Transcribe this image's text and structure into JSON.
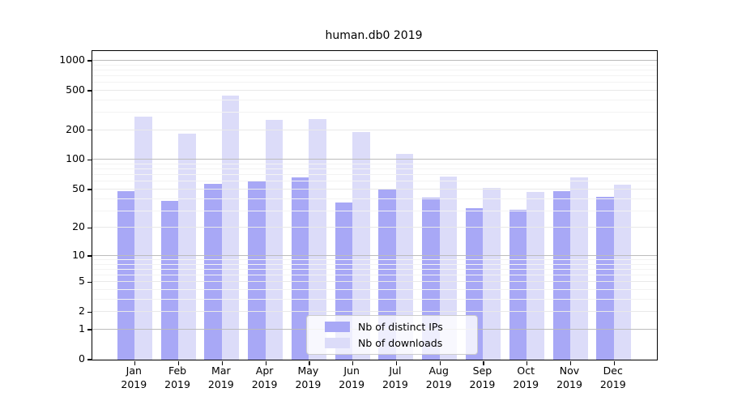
{
  "title": "human.db0 2019",
  "chart_data": {
    "type": "bar",
    "title": "human.db0 2019",
    "categories": [
      "Jan 2019",
      "Feb 2019",
      "Mar 2019",
      "Apr 2019",
      "May 2019",
      "Jun 2019",
      "Jul 2019",
      "Aug 2019",
      "Sep 2019",
      "Oct 2019",
      "Nov 2019",
      "Dec 2019"
    ],
    "month_labels": [
      "Jan",
      "Feb",
      "Mar",
      "Apr",
      "May",
      "Jun",
      "Jul",
      "Aug",
      "Sep",
      "Oct",
      "Nov",
      "Dec"
    ],
    "year_label": "2019",
    "series": [
      {
        "name": "Nb of distinct IPs",
        "color": "#a8a8f6",
        "values": [
          48,
          38,
          57,
          62,
          67,
          37,
          51,
          41,
          32,
          31,
          48,
          42
        ]
      },
      {
        "name": "Nb of downloads",
        "color": "#dcdcf9",
        "values": [
          275,
          184,
          450,
          256,
          259,
          193,
          115,
          68,
          52,
          47,
          66,
          56
        ]
      }
    ],
    "xlabel": "",
    "ylabel": "",
    "yscale": "log10(1+x)",
    "ylim": [
      0,
      1250
    ],
    "yticks": [
      0,
      1,
      2,
      5,
      10,
      20,
      50,
      100,
      200,
      500,
      1000
    ],
    "yticks_minor": [
      3,
      4,
      6,
      7,
      8,
      9,
      30,
      40,
      60,
      70,
      80,
      90,
      300,
      400,
      600,
      700,
      800,
      900
    ],
    "grid": "on",
    "legend_position": "lower center"
  },
  "legend": {
    "items": [
      {
        "label": "Nb of distinct IPs"
      },
      {
        "label": "Nb of downloads"
      }
    ]
  },
  "colors": {
    "bar_distinct_ips": "#a8a8f6",
    "bar_downloads": "#dcdcf9",
    "grid_decade": "#bcbcbc",
    "grid_major": "#e9e9e9",
    "grid_minor": "#f3f3f3",
    "axis": "#000000",
    "legend_border": "#cccccc",
    "text": "#000000"
  }
}
